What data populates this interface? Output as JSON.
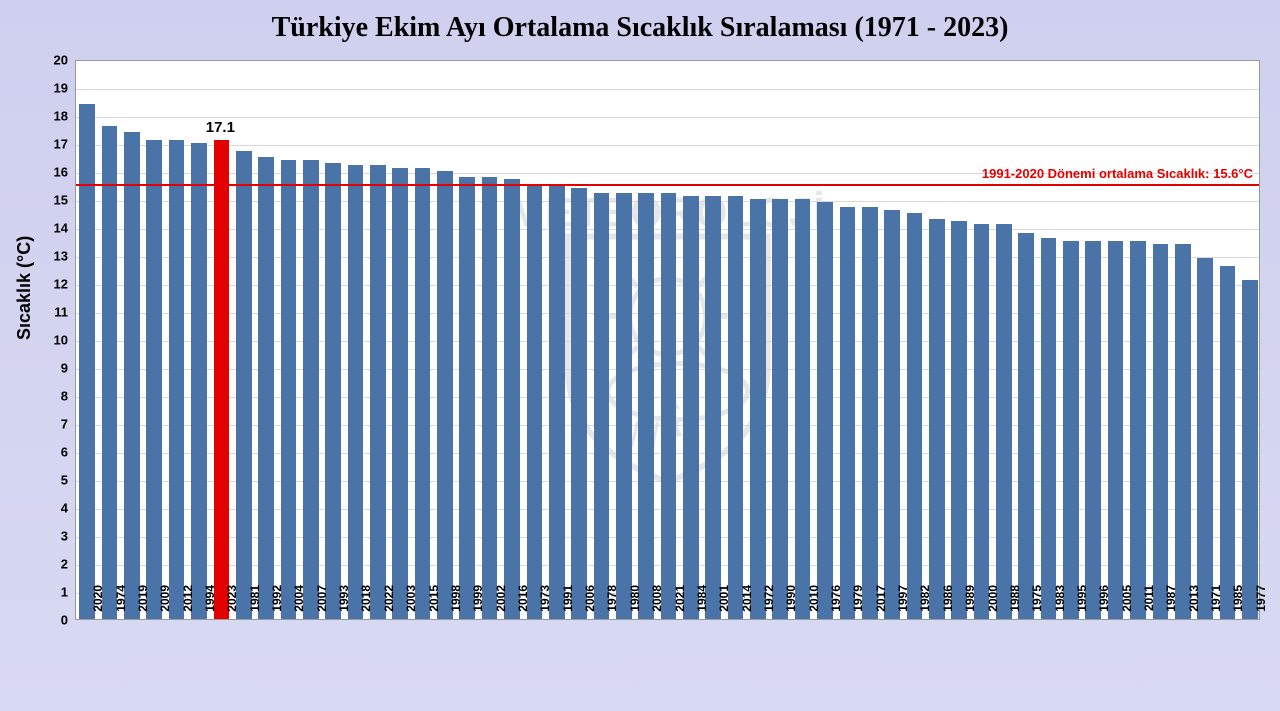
{
  "chart": {
    "type": "bar",
    "title": "Türkiye Ekim Ayı Ortalama Sıcaklık Sıralaması (1971 - 2023)",
    "title_fontsize": 28,
    "y_axis_label": "Sıcaklık (°C)",
    "background_gradient": [
      "#cfd0ef",
      "#d8d9f2"
    ],
    "plot_bg": "#ffffff",
    "grid_color": "#d9d9d9",
    "ylim": [
      0,
      20
    ],
    "ytick_step": 1,
    "y_ticks": [
      0,
      1,
      2,
      3,
      4,
      5,
      6,
      7,
      8,
      9,
      10,
      11,
      12,
      13,
      14,
      15,
      16,
      17,
      18,
      19,
      20
    ],
    "bar_color": "#4a74a8",
    "highlight_color": "#e30000",
    "highlight_year": "2023",
    "highlight_value_label": "17.1",
    "reference_line": {
      "value": 15.6,
      "color": "#e30000",
      "label": "1991-2020 Dönemi ortalama Sıcaklık: 15.6°C"
    },
    "watermark_text": "METEOROLOJİ",
    "bars": [
      {
        "year": "2020",
        "value": 18.4
      },
      {
        "year": "1974",
        "value": 17.6
      },
      {
        "year": "2019",
        "value": 17.4
      },
      {
        "year": "2009",
        "value": 17.1
      },
      {
        "year": "2012",
        "value": 17.1
      },
      {
        "year": "1994",
        "value": 17.0
      },
      {
        "year": "2023",
        "value": 17.1,
        "highlight": true
      },
      {
        "year": "1981",
        "value": 16.7
      },
      {
        "year": "1992",
        "value": 16.5
      },
      {
        "year": "2004",
        "value": 16.4
      },
      {
        "year": "2007",
        "value": 16.4
      },
      {
        "year": "1993",
        "value": 16.3
      },
      {
        "year": "2018",
        "value": 16.2
      },
      {
        "year": "2022",
        "value": 16.2
      },
      {
        "year": "2003",
        "value": 16.1
      },
      {
        "year": "2015",
        "value": 16.1
      },
      {
        "year": "1998",
        "value": 16.0
      },
      {
        "year": "1999",
        "value": 15.8
      },
      {
        "year": "2002",
        "value": 15.8
      },
      {
        "year": "2016",
        "value": 15.7
      },
      {
        "year": "1973",
        "value": 15.5
      },
      {
        "year": "1991",
        "value": 15.5
      },
      {
        "year": "2006",
        "value": 15.4
      },
      {
        "year": "1978",
        "value": 15.2
      },
      {
        "year": "1980",
        "value": 15.2
      },
      {
        "year": "2008",
        "value": 15.2
      },
      {
        "year": "2021",
        "value": 15.2
      },
      {
        "year": "1984",
        "value": 15.1
      },
      {
        "year": "2001",
        "value": 15.1
      },
      {
        "year": "2014",
        "value": 15.1
      },
      {
        "year": "1972",
        "value": 15.0
      },
      {
        "year": "1990",
        "value": 15.0
      },
      {
        "year": "2010",
        "value": 15.0
      },
      {
        "year": "1976",
        "value": 14.9
      },
      {
        "year": "1979",
        "value": 14.7
      },
      {
        "year": "2017",
        "value": 14.7
      },
      {
        "year": "1997",
        "value": 14.6
      },
      {
        "year": "1982",
        "value": 14.5
      },
      {
        "year": "1986",
        "value": 14.3
      },
      {
        "year": "1989",
        "value": 14.2
      },
      {
        "year": "2000",
        "value": 14.1
      },
      {
        "year": "1988",
        "value": 14.1
      },
      {
        "year": "1975",
        "value": 13.8
      },
      {
        "year": "1983",
        "value": 13.6
      },
      {
        "year": "1995",
        "value": 13.5
      },
      {
        "year": "1996",
        "value": 13.5
      },
      {
        "year": "2005",
        "value": 13.5
      },
      {
        "year": "2011",
        "value": 13.5
      },
      {
        "year": "1987",
        "value": 13.4
      },
      {
        "year": "2013",
        "value": 13.4
      },
      {
        "year": "1971",
        "value": 12.9
      },
      {
        "year": "1985",
        "value": 12.6
      },
      {
        "year": "1977",
        "value": 12.1
      }
    ]
  }
}
